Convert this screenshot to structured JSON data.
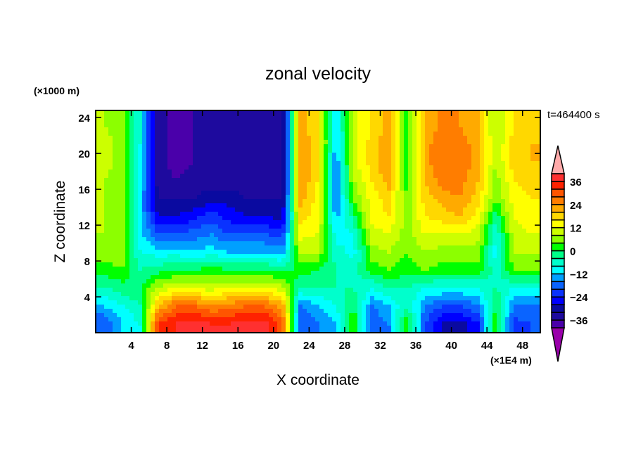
{
  "chart_data": {
    "type": "heatmap",
    "title": "zonal velocity",
    "xlabel": "X coordinate",
    "ylabel": "Z coordinate",
    "x_units": "(×1E4 m)",
    "y_units": "(×1000 m)",
    "annotation": "t=464400 s",
    "xlim": [
      0,
      50
    ],
    "ylim": [
      0,
      24.8
    ],
    "xticks": [
      4,
      8,
      12,
      16,
      20,
      24,
      28,
      32,
      36,
      40,
      44,
      48
    ],
    "yticks": [
      4,
      8,
      12,
      16,
      20,
      24
    ],
    "x_centers": [
      1,
      3,
      5,
      7,
      9,
      11,
      13,
      15,
      17,
      19,
      21,
      23,
      25,
      27,
      29,
      31,
      33,
      35,
      37,
      39,
      41,
      43,
      45,
      47,
      49
    ],
    "z_centers": [
      1,
      3,
      5,
      7,
      9,
      11,
      13,
      15,
      17,
      19,
      21,
      23
    ],
    "values": [
      [
        -20,
        -12,
        -8,
        32,
        36,
        38,
        36,
        36,
        38,
        38,
        30,
        -20,
        -16,
        -12,
        4,
        -20,
        -16,
        4,
        -20,
        -28,
        -30,
        -24,
        4,
        -22,
        -20
      ],
      [
        -12,
        -8,
        -4,
        20,
        28,
        28,
        24,
        26,
        28,
        28,
        22,
        -16,
        -12,
        -8,
        0,
        -16,
        -12,
        -4,
        -16,
        -20,
        -20,
        -16,
        0,
        -16,
        -16
      ],
      [
        -4,
        -2,
        0,
        8,
        12,
        12,
        10,
        12,
        12,
        12,
        10,
        -4,
        -4,
        -4,
        -4,
        -8,
        -4,
        -4,
        -8,
        -8,
        -8,
        -8,
        -4,
        -8,
        -8
      ],
      [
        2,
        4,
        -4,
        -2,
        0,
        0,
        2,
        0,
        0,
        0,
        -2,
        2,
        0,
        -4,
        -6,
        2,
        4,
        2,
        4,
        2,
        2,
        2,
        -6,
        4,
        4
      ],
      [
        6,
        6,
        -8,
        -10,
        -10,
        -12,
        -10,
        -12,
        -12,
        -12,
        -14,
        8,
        8,
        -6,
        -10,
        6,
        8,
        4,
        8,
        6,
        6,
        6,
        -10,
        8,
        8
      ],
      [
        8,
        8,
        -10,
        -20,
        -20,
        -18,
        -16,
        -20,
        -20,
        -20,
        -22,
        14,
        12,
        -10,
        -8,
        10,
        12,
        6,
        12,
        12,
        12,
        10,
        -8,
        10,
        12
      ],
      [
        8,
        6,
        -12,
        -28,
        -28,
        -26,
        -22,
        -26,
        -28,
        -28,
        -30,
        18,
        14,
        -14,
        -2,
        14,
        16,
        6,
        16,
        18,
        20,
        14,
        -2,
        12,
        14
      ],
      [
        8,
        6,
        -12,
        -32,
        -32,
        -32,
        -30,
        -30,
        -32,
        -32,
        -32,
        22,
        14,
        -16,
        4,
        14,
        18,
        4,
        18,
        22,
        24,
        18,
        4,
        14,
        16
      ],
      [
        8,
        6,
        -10,
        -34,
        -36,
        -34,
        -34,
        -34,
        -34,
        -36,
        -34,
        24,
        16,
        -16,
        8,
        16,
        22,
        2,
        20,
        26,
        26,
        20,
        6,
        16,
        18
      ],
      [
        10,
        6,
        -10,
        -34,
        -38,
        -36,
        -36,
        -34,
        -36,
        -36,
        -34,
        24,
        18,
        -16,
        10,
        18,
        24,
        0,
        22,
        28,
        28,
        22,
        8,
        18,
        20
      ],
      [
        10,
        6,
        -8,
        -34,
        -38,
        -36,
        -36,
        -36,
        -36,
        -36,
        -34,
        24,
        18,
        -14,
        10,
        18,
        24,
        0,
        22,
        28,
        26,
        22,
        8,
        18,
        20
      ],
      [
        8,
        6,
        -8,
        -34,
        -38,
        -36,
        -36,
        -36,
        -36,
        -36,
        -34,
        22,
        16,
        -12,
        10,
        16,
        22,
        2,
        20,
        26,
        24,
        20,
        8,
        16,
        18
      ]
    ],
    "levels": [
      -40,
      -36,
      -32,
      -28,
      -24,
      -20,
      -16,
      -12,
      -8,
      -4,
      0,
      4,
      8,
      12,
      16,
      20,
      24,
      28,
      32,
      36,
      40
    ],
    "colors": [
      "#4a00aa",
      "#1e0a9e",
      "#0a0aa0",
      "#0000ff",
      "#0a32ff",
      "#0a64ff",
      "#00a0ff",
      "#00ffff",
      "#00ffcc",
      "#00ff88",
      "#00ff00",
      "#8cff00",
      "#ccff00",
      "#ffff00",
      "#ffd800",
      "#ffaa00",
      "#ff7d00",
      "#ff5500",
      "#ff2200",
      "#ff3030"
    ],
    "over_color": "#ffaaaa",
    "under_color": "#9900aa",
    "colorbar_labels": [
      36,
      24,
      12,
      0,
      -12,
      -24,
      -36
    ],
    "legend": "right"
  }
}
